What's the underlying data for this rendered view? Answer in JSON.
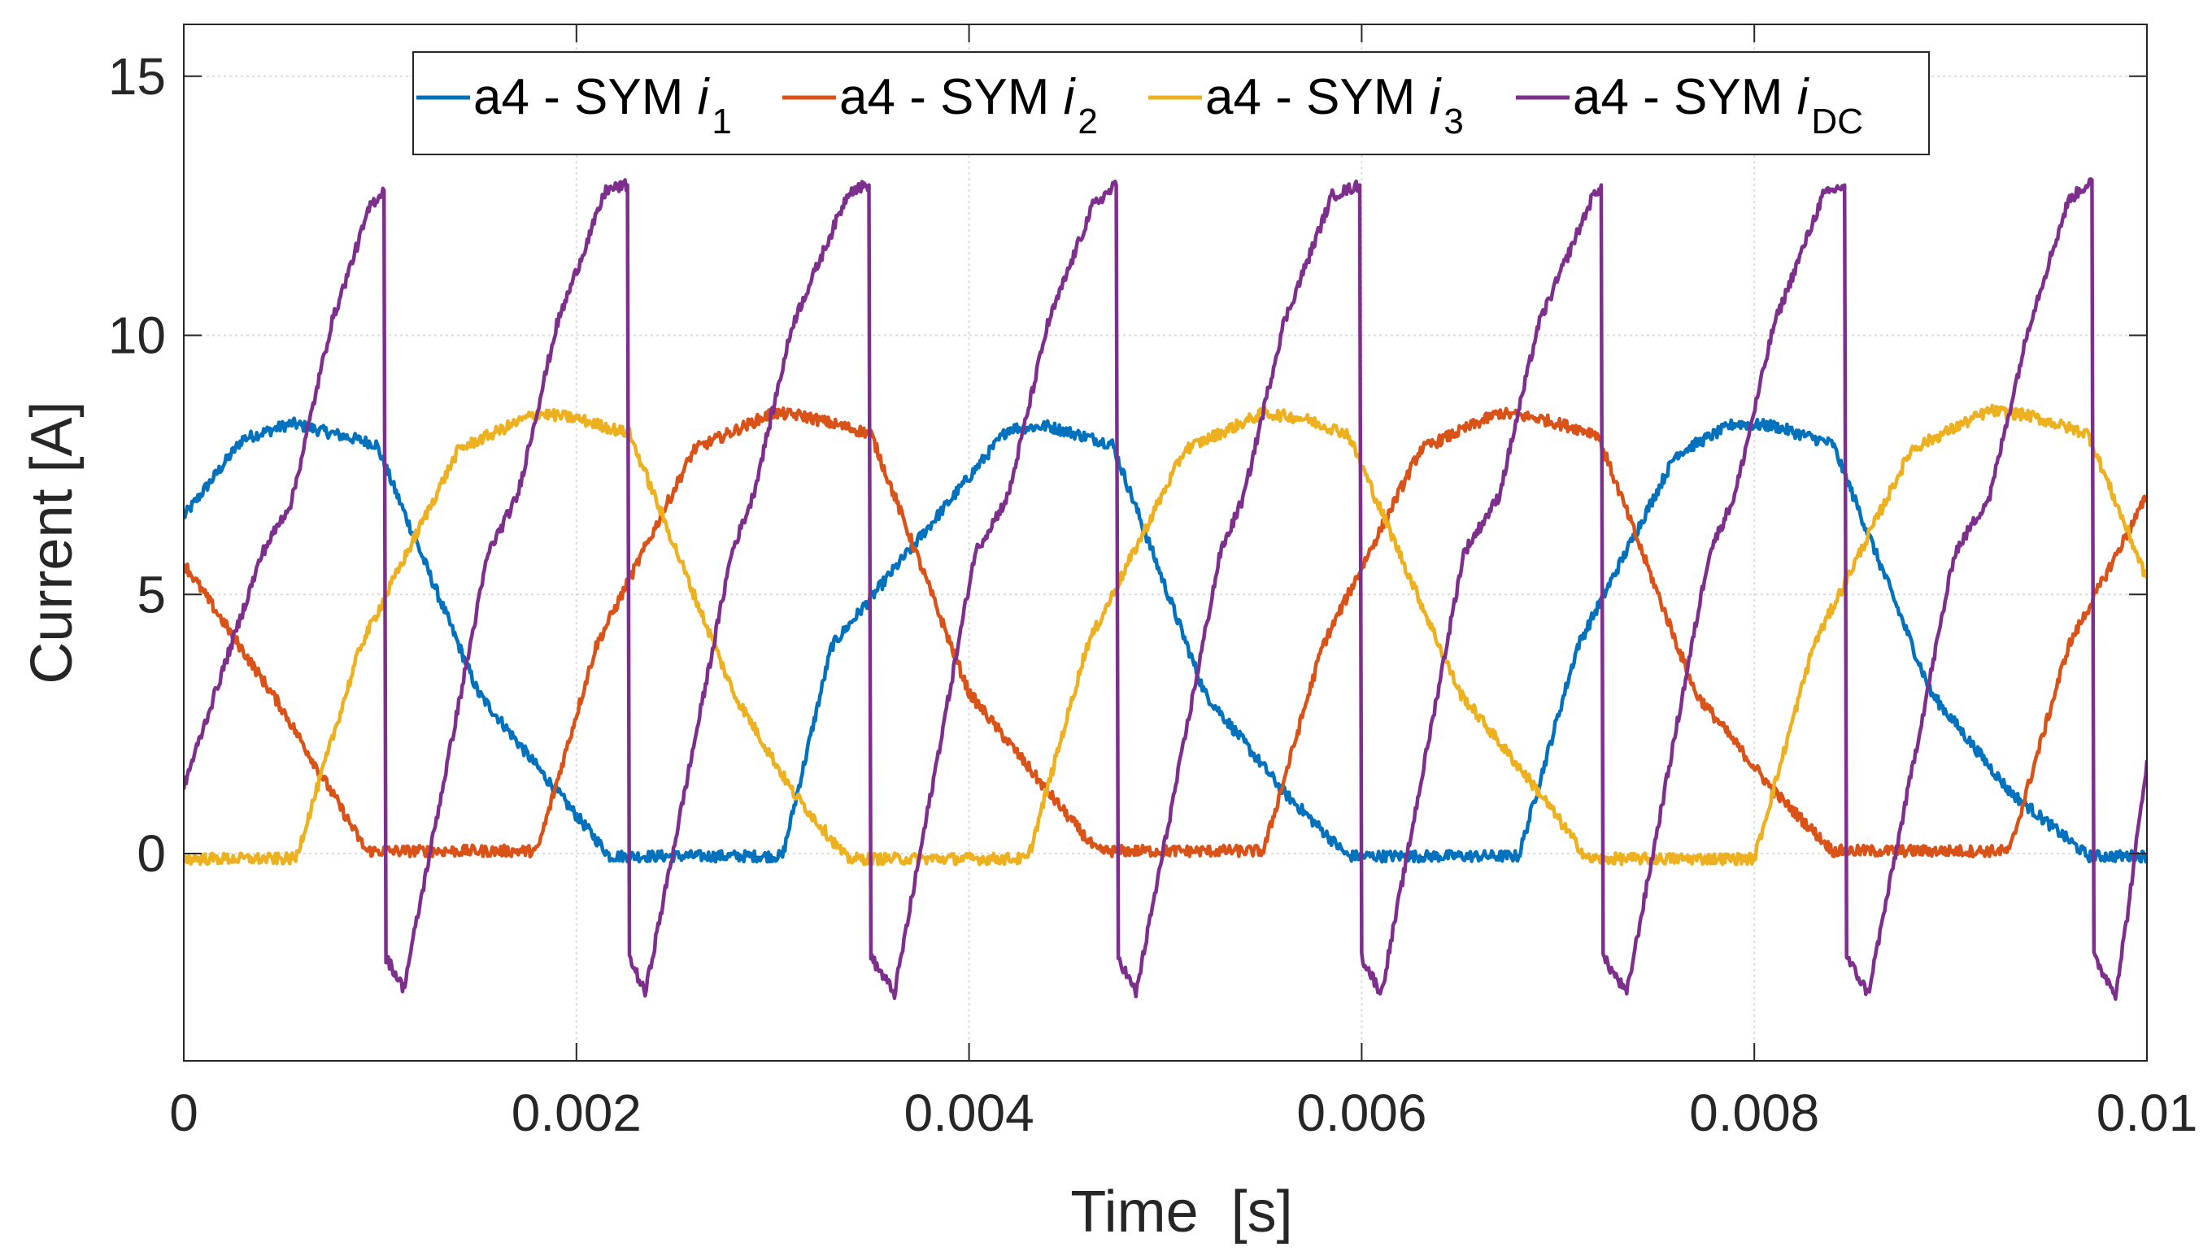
{
  "chart_data": {
    "type": "line",
    "title": "",
    "xlabel": "Time  [s]",
    "ylabel": "Current [A]",
    "xlim": [
      0,
      0.01
    ],
    "ylim": [
      -4,
      16
    ],
    "xticks": [
      0,
      0.002,
      0.004,
      0.006,
      0.008,
      0.01
    ],
    "xtick_labels": [
      "0",
      "0.002",
      "0.004",
      "0.006",
      "0.008",
      "0.01"
    ],
    "yticks": [
      0,
      5,
      10,
      15
    ],
    "ytick_labels": [
      "0",
      "5",
      "10",
      "15"
    ],
    "grid": true,
    "legend_position": "top",
    "period": 0.003333,
    "series": [
      {
        "name": "a4 - SYM i1",
        "label_main": "a4 - SYM ",
        "label_var": "i",
        "label_sub": "1",
        "color": "#0072BD",
        "x": [
          0,
          0.0003,
          0.00055,
          0.00098,
          0.0015,
          0.0019,
          0.00217,
          0.00305,
          0.0033,
          0.0042,
          0.0044,
          0.00473,
          0.0052,
          0.0056,
          0.00593,
          0.0068,
          0.0071,
          0.0076,
          0.0079,
          0.0081,
          0.0084,
          0.0089,
          0.0093,
          0.0097,
          0.01
        ],
        "y": [
          6.5,
          8.0,
          8.3,
          7.9,
          3.1,
          1.2,
          -0.05,
          -0.05,
          4.0,
          8.2,
          8.25,
          7.9,
          3.1,
          1.2,
          -0.05,
          -0.05,
          4.0,
          7.7,
          8.3,
          8.25,
          7.9,
          3.1,
          1.2,
          -0.05,
          -0.05
        ]
      },
      {
        "name": "a4 - SYM i2",
        "label_main": "a4 - SYM ",
        "label_var": "i",
        "label_sub": "2",
        "color": "#D95319",
        "x": [
          0,
          0.0005,
          0.00093,
          0.0018,
          0.0021,
          0.0026,
          0.003,
          0.00315,
          0.0035,
          0.004,
          0.0044,
          0.00465,
          0.0055,
          0.0058,
          0.0063,
          0.0067,
          0.0069,
          0.0072,
          0.0077,
          0.0081,
          0.0084,
          0.0093,
          0.0096,
          0.01
        ],
        "y": [
          5.6,
          2.8,
          0.05,
          0.05,
          4.0,
          7.8,
          8.5,
          8.45,
          8.1,
          3.1,
          1.2,
          0.05,
          0.05,
          4.0,
          7.8,
          8.5,
          8.4,
          8.1,
          3.1,
          1.2,
          0.05,
          0.05,
          4.0,
          6.9
        ]
      },
      {
        "name": "a4 - SYM i3",
        "label_main": "a4 - SYM ",
        "label_var": "i",
        "label_sub": "3",
        "color": "#EDB120",
        "x": [
          0,
          0.00057,
          0.0009,
          0.0014,
          0.0018,
          0.002,
          0.00227,
          0.0028,
          0.0031,
          0.00338,
          0.0043,
          0.0046,
          0.0051,
          0.0055,
          0.0057,
          0.00593,
          0.0065,
          0.0069,
          0.00715,
          0.008,
          0.0083,
          0.0088,
          0.0092,
          0.0094,
          0.0097,
          0.01
        ],
        "y": [
          -0.1,
          -0.1,
          4.0,
          7.8,
          8.5,
          8.4,
          8.1,
          3.1,
          1.2,
          -0.1,
          -0.1,
          4.0,
          7.8,
          8.5,
          8.4,
          8.1,
          3.1,
          1.2,
          -0.1,
          -0.1,
          4.0,
          7.8,
          8.55,
          8.45,
          8.1,
          5.3
        ]
      },
      {
        "name": "a4 - SYM iDC",
        "label_main": "a4 - SYM ",
        "label_var": "i",
        "label_sub": "DC",
        "color": "#7E2F8E",
        "x": [
          0,
          0.0004,
          0.00055,
          0.00075,
          0.00095,
          0.00102,
          0.00103,
          0.00112,
          0.00155,
          0.0017,
          0.0019,
          0.00215,
          0.00226,
          0.00227,
          0.00235,
          0.00279,
          0.0029,
          0.0031,
          0.00339,
          0.00349,
          0.0035,
          0.00362,
          0.00403,
          0.0042,
          0.0044,
          0.00463,
          0.00475,
          0.00476,
          0.00485,
          0.00528,
          0.0054,
          0.0056,
          0.00585,
          0.00599,
          0.006,
          0.0061,
          0.00652,
          0.0067,
          0.0069,
          0.00718,
          0.00722,
          0.00723,
          0.00735,
          0.00777,
          0.0079,
          0.0081,
          0.00835,
          0.00846,
          0.00847,
          0.00858,
          0.00902,
          0.0092,
          0.0094,
          0.0096,
          0.00972,
          0.00973,
          0.00984,
          0.0099,
          0.01
        ],
        "y": [
          1.3,
          5.8,
          6.8,
          10.2,
          12.5,
          12.8,
          -2.0,
          -2.6,
          5.8,
          6.9,
          10.2,
          12.8,
          12.9,
          -2.0,
          -2.7,
          5.8,
          6.9,
          10.2,
          12.8,
          12.9,
          -2.0,
          -2.7,
          5.8,
          6.9,
          10.2,
          12.5,
          12.9,
          -2.0,
          -2.7,
          5.8,
          6.9,
          10.2,
          12.7,
          12.9,
          -2.0,
          -2.7,
          5.8,
          6.9,
          10.2,
          12.7,
          12.9,
          -2.0,
          -2.7,
          5.8,
          6.9,
          10.2,
          12.7,
          12.9,
          -2.0,
          -2.7,
          5.8,
          6.9,
          10.2,
          12.6,
          13.0,
          -2.0,
          -2.7,
          -1.2,
          1.8
        ]
      }
    ]
  }
}
